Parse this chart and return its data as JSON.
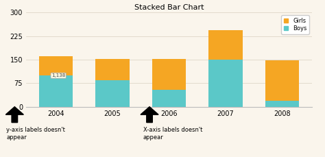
{
  "title": "Stacked Bar Chart",
  "years": [
    2004,
    2005,
    2006,
    2007,
    2008
  ],
  "boys": [
    100,
    85,
    55,
    150,
    20
  ],
  "girls": [
    60,
    68,
    97,
    95,
    128
  ],
  "boys_color": "#5bc8c8",
  "girls_color": "#f5a623",
  "background_color": "#faf5ec",
  "ylim": [
    0,
    300
  ],
  "yticks": [
    0,
    75,
    150,
    225,
    300
  ],
  "legend_labels": [
    "Girls",
    "Boys"
  ],
  "annotation_left_text": "y-axis labels doesn't\nappear",
  "annotation_mid_text": "X-axis labels doesn't\nappear",
  "title_fontsize": 8,
  "tick_fontsize": 7,
  "legend_fontsize": 6,
  "bar_width": 0.6,
  "tooltip_text": "1,138"
}
